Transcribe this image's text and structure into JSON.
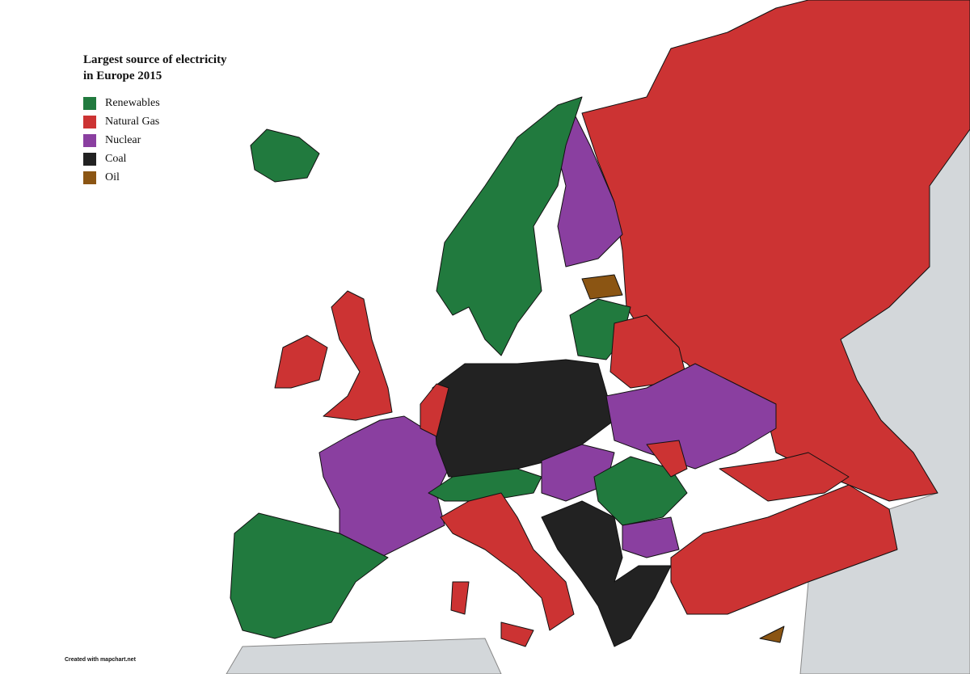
{
  "legend": {
    "title": "Largest source of electricity in Europe 2015",
    "items": [
      {
        "label": "Renewables",
        "color": "#217a3e"
      },
      {
        "label": "Natural Gas",
        "color": "#cc3333"
      },
      {
        "label": "Nuclear",
        "color": "#8a3fa0"
      },
      {
        "label": "Coal",
        "color": "#222222"
      },
      {
        "label": "Oil",
        "color": "#8b5513"
      }
    ]
  },
  "footer": {
    "credit": "Created with mapchart.net"
  }
}
